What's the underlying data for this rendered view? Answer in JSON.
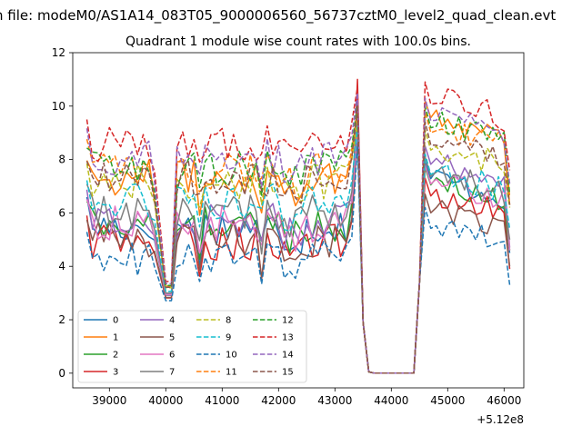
{
  "figure": {
    "suptitle": "n file: modeM0/AS1A14_083T05_9000006560_56737cztM0_level2_quad_clean.evt"
  },
  "chart_data": {
    "type": "line",
    "title": "Quadrant 1 module wise count rates with 100.0s bins.",
    "xlabel": "",
    "ylabel": "",
    "x_offset_label": "+5.12e8",
    "xlim": [
      38350,
      46350
    ],
    "ylim": [
      -0.55,
      12.0
    ],
    "x_ticks": [
      39000,
      40000,
      41000,
      42000,
      43000,
      44000,
      45000,
      46000
    ],
    "x_tick_labels": [
      "39000",
      "40000",
      "41000",
      "42000",
      "43000",
      "44000",
      "45000",
      "46000"
    ],
    "y_ticks": [
      0,
      2,
      4,
      6,
      8,
      10,
      12
    ],
    "y_tick_labels": [
      "0",
      "2",
      "4",
      "6",
      "8",
      "10",
      "12"
    ],
    "grid": false,
    "legend_position": "lower-left",
    "legend_columns": 4,
    "x_segments": [
      [
        38600,
        43400
      ],
      [
        43500,
        43600
      ],
      [
        43600,
        44400
      ],
      [
        44500,
        46100
      ]
    ],
    "gap_range": [
      43600,
      44400
    ],
    "series": [
      {
        "name": "0",
        "color": "#1f77b4",
        "dash": "solid",
        "base": 5.5,
        "spike": 9.6,
        "post": 7.0
      },
      {
        "name": "1",
        "color": "#ff7f0e",
        "dash": "solid",
        "base": 7.3,
        "spike": 10.0,
        "post": 9.3
      },
      {
        "name": "2",
        "color": "#2ca02c",
        "dash": "solid",
        "base": 5.6,
        "spike": 9.4,
        "post": 6.8
      },
      {
        "name": "3",
        "color": "#d62728",
        "dash": "solid",
        "base": 4.9,
        "spike": 11.0,
        "post": 6.4
      },
      {
        "name": "4",
        "color": "#9467bd",
        "dash": "solid",
        "base": 5.7,
        "spike": 10.3,
        "post": 7.6
      },
      {
        "name": "5",
        "color": "#8c564b",
        "dash": "solid",
        "base": 5.0,
        "spike": 8.7,
        "post": 5.8
      },
      {
        "name": "6",
        "color": "#e377c2",
        "dash": "solid",
        "base": 5.6,
        "spike": 9.0,
        "post": 6.9
      },
      {
        "name": "7",
        "color": "#7f7f7f",
        "dash": "solid",
        "base": 6.0,
        "spike": 9.8,
        "post": 7.2
      },
      {
        "name": "8",
        "color": "#bcbd22",
        "dash": "dashed",
        "base": 7.2,
        "spike": 9.4,
        "post": 8.2
      },
      {
        "name": "9",
        "color": "#17becf",
        "dash": "dashed",
        "base": 6.4,
        "spike": 9.2,
        "post": 7.3
      },
      {
        "name": "10",
        "color": "#1f77b4",
        "dash": "dashed",
        "base": 4.3,
        "spike": 8.6,
        "post": 5.3
      },
      {
        "name": "11",
        "color": "#ff7f0e",
        "dash": "dashed",
        "base": 7.6,
        "spike": 9.8,
        "post": 8.9
      },
      {
        "name": "12",
        "color": "#2ca02c",
        "dash": "dashed",
        "base": 7.7,
        "spike": 10.1,
        "post": 9.1
      },
      {
        "name": "13",
        "color": "#d62728",
        "dash": "dashed",
        "base": 8.6,
        "spike": 10.7,
        "post": 10.0
      },
      {
        "name": "14",
        "color": "#9467bd",
        "dash": "dashed",
        "base": 8.1,
        "spike": 10.5,
        "post": 9.4
      },
      {
        "name": "15",
        "color": "#8c564b",
        "dash": "dashed",
        "base": 7.3,
        "spike": 10.0,
        "post": 8.5
      }
    ]
  }
}
